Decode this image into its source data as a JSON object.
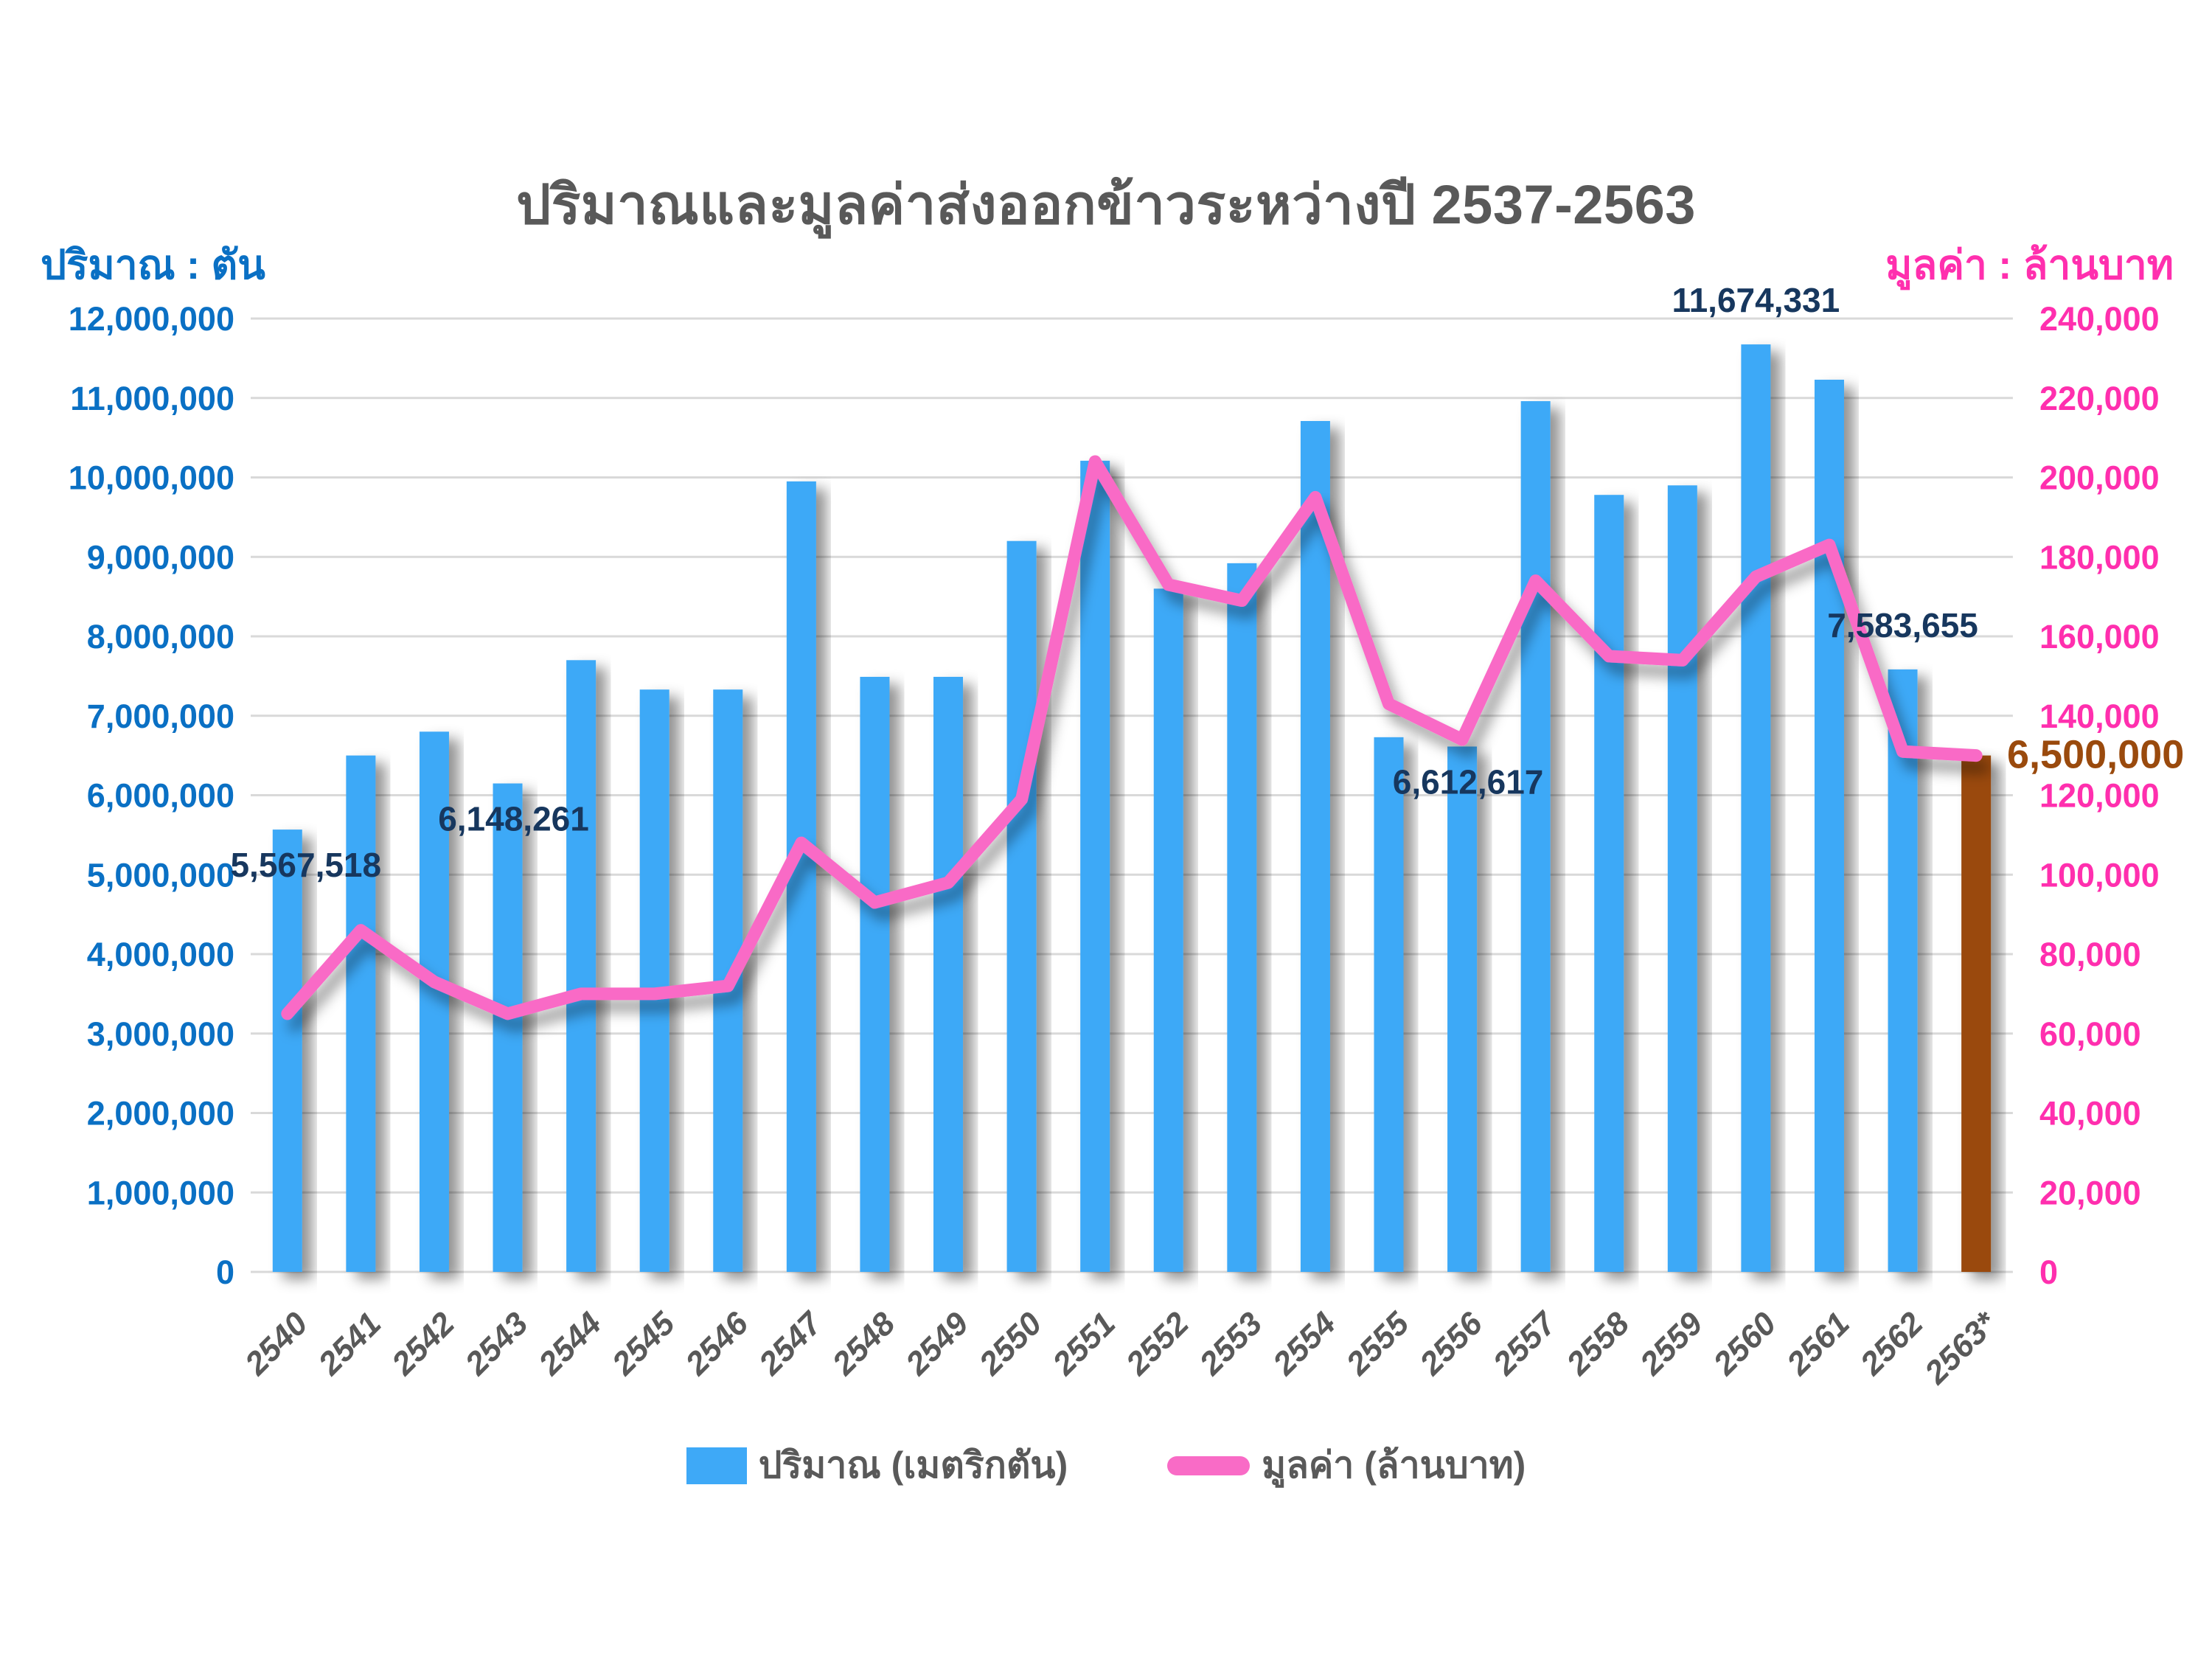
{
  "title": "ปริมาณและมูลค่าส่งออกข้าวระหว่างปี 2537-2563",
  "left_axis": {
    "title": "ปริมาณ : ตัน",
    "min": 0,
    "max": 12000000,
    "step": 1000000
  },
  "right_axis": {
    "title": "มูลค่า : ล้านบาท",
    "min": 0,
    "max": 240000,
    "step": 20000
  },
  "legend": [
    {
      "label": "ปริมาณ (เมตริกตัน)",
      "type": "bar"
    },
    {
      "label": "มูลค่า (ล้านบาท)",
      "type": "line"
    }
  ],
  "colors": {
    "bar_blue": "#3EA9F7",
    "bar_brown": "#9A4A0D",
    "line_pink": "#F96BC6",
    "left_axis_blue": "#0A70C4",
    "right_axis_pink": "#FF2FAE",
    "data_label_navy": "#17375E",
    "data_label_brown": "#9A4A0D",
    "title_gray": "#595959",
    "x_label_gray": "#595959",
    "gridline": "#D9D9D9"
  },
  "chart_data": {
    "type": "bar",
    "combo": "bar+line",
    "title": "ปริมาณและมูลค่าส่งออกข้าวระหว่างปี 2537-2563",
    "categories": [
      "2540",
      "2541",
      "2542",
      "2543",
      "2544",
      "2545",
      "2546",
      "2547",
      "2548",
      "2549",
      "2550",
      "2551",
      "2552",
      "2553",
      "2554",
      "2555",
      "2556",
      "2557",
      "2558",
      "2559",
      "2560",
      "2561",
      "2562",
      "2563*"
    ],
    "series": [
      {
        "name": "ปริมาณ (เมตริกตัน)",
        "type": "bar",
        "axis": "left",
        "values": [
          5567518,
          6500000,
          6800000,
          6148261,
          7700000,
          7330000,
          7330000,
          9950000,
          7490000,
          7490000,
          9200000,
          10210000,
          8600000,
          8920000,
          10710000,
          6730000,
          6612617,
          10960000,
          9780000,
          9900000,
          11674331,
          11230000,
          7583655,
          6500000
        ]
      },
      {
        "name": "มูลค่า (ล้านบาท)",
        "type": "line",
        "axis": "right",
        "values": [
          65000,
          86000,
          73000,
          65000,
          70000,
          70000,
          72000,
          108000,
          93000,
          98000,
          119000,
          204000,
          173000,
          169000,
          195000,
          143000,
          134000,
          174000,
          155000,
          154000,
          175000,
          183000,
          131000,
          130000
        ]
      }
    ],
    "point_labels": [
      {
        "index": 0,
        "text": "5,567,518",
        "placement": "below",
        "color": "navy"
      },
      {
        "index": 3,
        "text": "6,148,261",
        "placement": "below",
        "color": "navy"
      },
      {
        "index": 16,
        "text": "6,612,617",
        "placement": "below",
        "color": "navy"
      },
      {
        "index": 20,
        "text": "11,674,331",
        "placement": "above",
        "color": "navy"
      },
      {
        "index": 22,
        "text": "7,583,655",
        "placement": "above",
        "color": "navy"
      },
      {
        "index": 23,
        "text": "6,500,000",
        "placement": "right",
        "color": "brown"
      }
    ],
    "ylim_left": [
      0,
      12000000
    ],
    "ylim_right": [
      0,
      240000
    ],
    "grid": "horizontal",
    "legend_position": "bottom"
  }
}
